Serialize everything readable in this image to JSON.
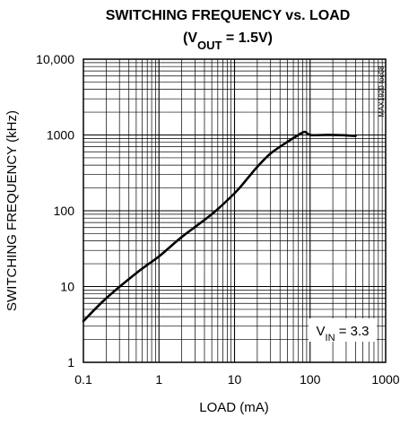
{
  "chart_data": {
    "type": "line",
    "title": "SWITCHING FREQUENCY vs. LOAD",
    "subtitle": {
      "prefix": "(V",
      "subscript": "OUT",
      "suffix": " = 1.5V)"
    },
    "xlabel": "LOAD (mA)",
    "ylabel": "SWITCHING FREQUENCY (kHz)",
    "x_scale": "log",
    "y_scale": "log",
    "xlim": [
      0.1,
      1000
    ],
    "ylim": [
      1,
      10000
    ],
    "x_ticks": [
      0.1,
      1,
      10,
      100,
      1000
    ],
    "x_tick_labels": [
      "0.1",
      "1",
      "10",
      "100",
      "1000"
    ],
    "y_ticks": [
      1,
      10,
      100,
      1000,
      10000
    ],
    "y_tick_labels": [
      "1",
      "10",
      "100",
      "1000",
      "10,000"
    ],
    "grid": true,
    "watermark": "MAX1920 toc08",
    "annotation": {
      "prefix": "V",
      "subscript": "IN",
      "suffix": " = 3.3"
    },
    "series": [
      {
        "x": [
          0.1,
          0.2,
          0.5,
          1,
          2,
          5,
          10,
          15,
          20,
          30,
          50,
          70,
          85,
          100,
          150,
          200,
          300,
          400
        ],
        "y": [
          3.5,
          7,
          15,
          25,
          45,
          90,
          170,
          270,
          380,
          570,
          810,
          1000,
          1100,
          1000,
          1000,
          1000,
          990,
          970
        ]
      }
    ],
    "colors": {
      "line": "#000000",
      "grid": "#000000",
      "legend_bg": "#ffffff"
    }
  }
}
